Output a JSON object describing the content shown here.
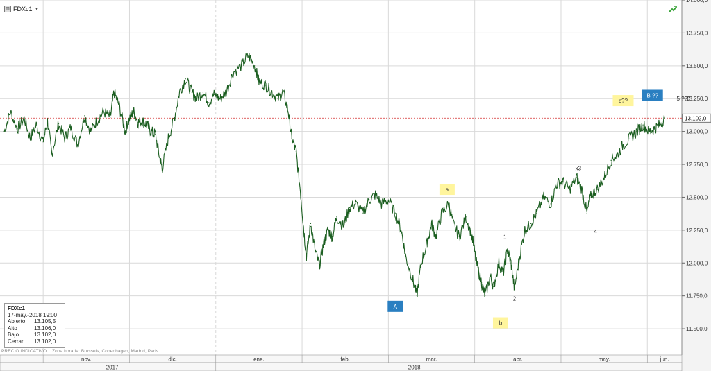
{
  "symbol": {
    "name": "FDXc1",
    "icon": "instrument-icon",
    "caret": "▼"
  },
  "trend_icon": "trend-arrow-icon",
  "colors": {
    "price": "#1b5e20",
    "last_line": "#d32f2f",
    "label_yellow": "#fff59d",
    "label_blue": "#2a7fc1",
    "grid": "#d9d9d9",
    "axis_bg": "#f3f3f3"
  },
  "infobox": {
    "title": "FDXc1",
    "date": "17-may.-2018 19:00",
    "rows": [
      {
        "k": "Abierto",
        "v": "13.105,5"
      },
      {
        "k": "Alto",
        "v": "13.106,0"
      },
      {
        "k": "Bajo",
        "v": "13.102,0"
      },
      {
        "k": "Cerrar",
        "v": "13.102,0"
      }
    ]
  },
  "footer": {
    "price_label": "PRECIO INDICATIVO",
    "timezone": "Zona horaria: Brussels, Copenhagen, Madrid, Paris"
  },
  "chart_data": {
    "type": "line",
    "ylim": [
      11300,
      14000
    ],
    "y_ticks": [
      11500,
      11750,
      12000,
      12250,
      12500,
      12750,
      13000,
      13250,
      13500,
      13750,
      14000
    ],
    "y_tick_labels": [
      "11.500,0",
      "11.750,0",
      "12.000,0",
      "12.250,0",
      "12.500,0",
      "12.750,0",
      "13.000,0",
      "13.250,0",
      "13.500,0",
      "13.750,0",
      "14.000,0"
    ],
    "last_value": 13102,
    "last_label": "13.102,0",
    "x_months": [
      {
        "label": "nov.",
        "x": 0
      },
      {
        "label": "dic.",
        "x": 1
      },
      {
        "label": "ene.",
        "x": 2
      },
      {
        "label": "feb.",
        "x": 3
      },
      {
        "label": "mar.",
        "x": 4
      },
      {
        "label": "abr.",
        "x": 5
      },
      {
        "label": "may.",
        "x": 6
      },
      {
        "label": "jun.",
        "x": 7
      }
    ],
    "x_years": [
      {
        "label": "2017",
        "x": 0.8
      },
      {
        "label": "2018",
        "x": 4.3
      }
    ],
    "xlim": [
      -0.5,
      7.4
    ],
    "series": [
      {
        "points": [
          [
            -0.45,
            13000
          ],
          [
            -0.38,
            13150
          ],
          [
            -0.3,
            13020
          ],
          [
            -0.22,
            13100
          ],
          [
            -0.15,
            12950
          ],
          [
            -0.08,
            13050
          ],
          [
            0.0,
            12920
          ],
          [
            0.05,
            13080
          ],
          [
            0.1,
            12830
          ],
          [
            0.18,
            13060
          ],
          [
            0.25,
            12950
          ],
          [
            0.32,
            13030
          ],
          [
            0.4,
            12900
          ],
          [
            0.48,
            13120
          ],
          [
            0.55,
            13000
          ],
          [
            0.62,
            13080
          ],
          [
            0.7,
            13150
          ],
          [
            0.78,
            13110
          ],
          [
            0.82,
            13300
          ],
          [
            0.88,
            13200
          ],
          [
            0.95,
            13000
          ],
          [
            1.0,
            13100
          ],
          [
            1.05,
            13150
          ],
          [
            1.1,
            13070
          ],
          [
            1.15,
            13080
          ],
          [
            1.2,
            13050
          ],
          [
            1.25,
            13000
          ],
          [
            1.3,
            12980
          ],
          [
            1.35,
            12800
          ],
          [
            1.38,
            12720
          ],
          [
            1.45,
            12950
          ],
          [
            1.52,
            13100
          ],
          [
            1.58,
            13300
          ],
          [
            1.65,
            13400
          ],
          [
            1.72,
            13300
          ],
          [
            1.78,
            13250
          ],
          [
            1.85,
            13300
          ],
          [
            1.92,
            13220
          ],
          [
            1.98,
            13280
          ],
          [
            2.05,
            13250
          ],
          [
            2.12,
            13300
          ],
          [
            2.2,
            13450
          ],
          [
            2.3,
            13500
          ],
          [
            2.38,
            13580
          ],
          [
            2.45,
            13500
          ],
          [
            2.5,
            13380
          ],
          [
            2.58,
            13350
          ],
          [
            2.65,
            13300
          ],
          [
            2.72,
            13250
          ],
          [
            2.78,
            13300
          ],
          [
            2.84,
            13150
          ],
          [
            2.88,
            12950
          ],
          [
            2.93,
            12850
          ],
          [
            2.98,
            12550
          ],
          [
            3.02,
            12250
          ],
          [
            3.05,
            12050
          ],
          [
            3.1,
            12300
          ],
          [
            3.15,
            12100
          ],
          [
            3.2,
            11980
          ],
          [
            3.25,
            12150
          ],
          [
            3.3,
            12250
          ],
          [
            3.35,
            12200
          ],
          [
            3.4,
            12350
          ],
          [
            3.48,
            12280
          ],
          [
            3.55,
            12420
          ],
          [
            3.62,
            12450
          ],
          [
            3.7,
            12380
          ],
          [
            3.78,
            12480
          ],
          [
            3.85,
            12520
          ],
          [
            3.92,
            12450
          ],
          [
            4.0,
            12480
          ],
          [
            4.08,
            12380
          ],
          [
            4.15,
            12250
          ],
          [
            4.2,
            12050
          ],
          [
            4.28,
            11880
          ],
          [
            4.33,
            11750
          ],
          [
            4.38,
            12000
          ],
          [
            4.45,
            12150
          ],
          [
            4.5,
            12300
          ],
          [
            4.55,
            12200
          ],
          [
            4.62,
            12380
          ],
          [
            4.7,
            12450
          ],
          [
            4.75,
            12300
          ],
          [
            4.82,
            12200
          ],
          [
            4.9,
            12350
          ],
          [
            4.97,
            12200
          ],
          [
            5.02,
            12000
          ],
          [
            5.08,
            11850
          ],
          [
            5.12,
            11750
          ],
          [
            5.18,
            11900
          ],
          [
            5.22,
            11820
          ],
          [
            5.28,
            12000
          ],
          [
            5.33,
            11920
          ],
          [
            5.38,
            12100
          ],
          [
            5.42,
            12000
          ],
          [
            5.46,
            11800
          ],
          [
            5.52,
            12050
          ],
          [
            5.58,
            12250
          ],
          [
            5.65,
            12300
          ],
          [
            5.72,
            12380
          ],
          [
            5.8,
            12500
          ],
          [
            5.88,
            12450
          ],
          [
            5.95,
            12600
          ],
          [
            6.02,
            12620
          ],
          [
            6.1,
            12560
          ],
          [
            6.18,
            12650
          ],
          [
            6.24,
            12560
          ],
          [
            6.3,
            12380
          ],
          [
            6.35,
            12520
          ],
          [
            6.42,
            12560
          ],
          [
            6.5,
            12650
          ],
          [
            6.58,
            12780
          ],
          [
            6.65,
            12820
          ],
          [
            6.72,
            12900
          ],
          [
            6.8,
            12950
          ],
          [
            6.88,
            13000
          ],
          [
            6.95,
            13050
          ],
          [
            7.02,
            13000
          ],
          [
            7.08,
            13020
          ],
          [
            7.14,
            13050
          ],
          [
            7.2,
            13102
          ]
        ]
      }
    ],
    "annotations": [
      {
        "text": "a",
        "x": 4.68,
        "y": 12560,
        "style": "yellow"
      },
      {
        "text": "A",
        "x": 4.08,
        "y": 11670,
        "style": "blue"
      },
      {
        "text": "b",
        "x": 5.3,
        "y": 11545,
        "style": "yellow"
      },
      {
        "text": "c??",
        "x": 6.72,
        "y": 13235,
        "style": "yellow"
      },
      {
        "text": "B ??",
        "x": 7.06,
        "y": 13275,
        "style": "blue"
      },
      {
        "text": "5 ???",
        "x": 7.42,
        "y": 13250,
        "style": "plain"
      },
      {
        "text": "x3",
        "x": 6.2,
        "y": 12720,
        "style": "plain"
      },
      {
        "text": "4",
        "x": 6.4,
        "y": 12240,
        "style": "plain"
      },
      {
        "text": "1",
        "x": 5.35,
        "y": 12200,
        "style": "plain"
      },
      {
        "text": "2",
        "x": 5.46,
        "y": 11730,
        "style": "plain"
      }
    ]
  }
}
